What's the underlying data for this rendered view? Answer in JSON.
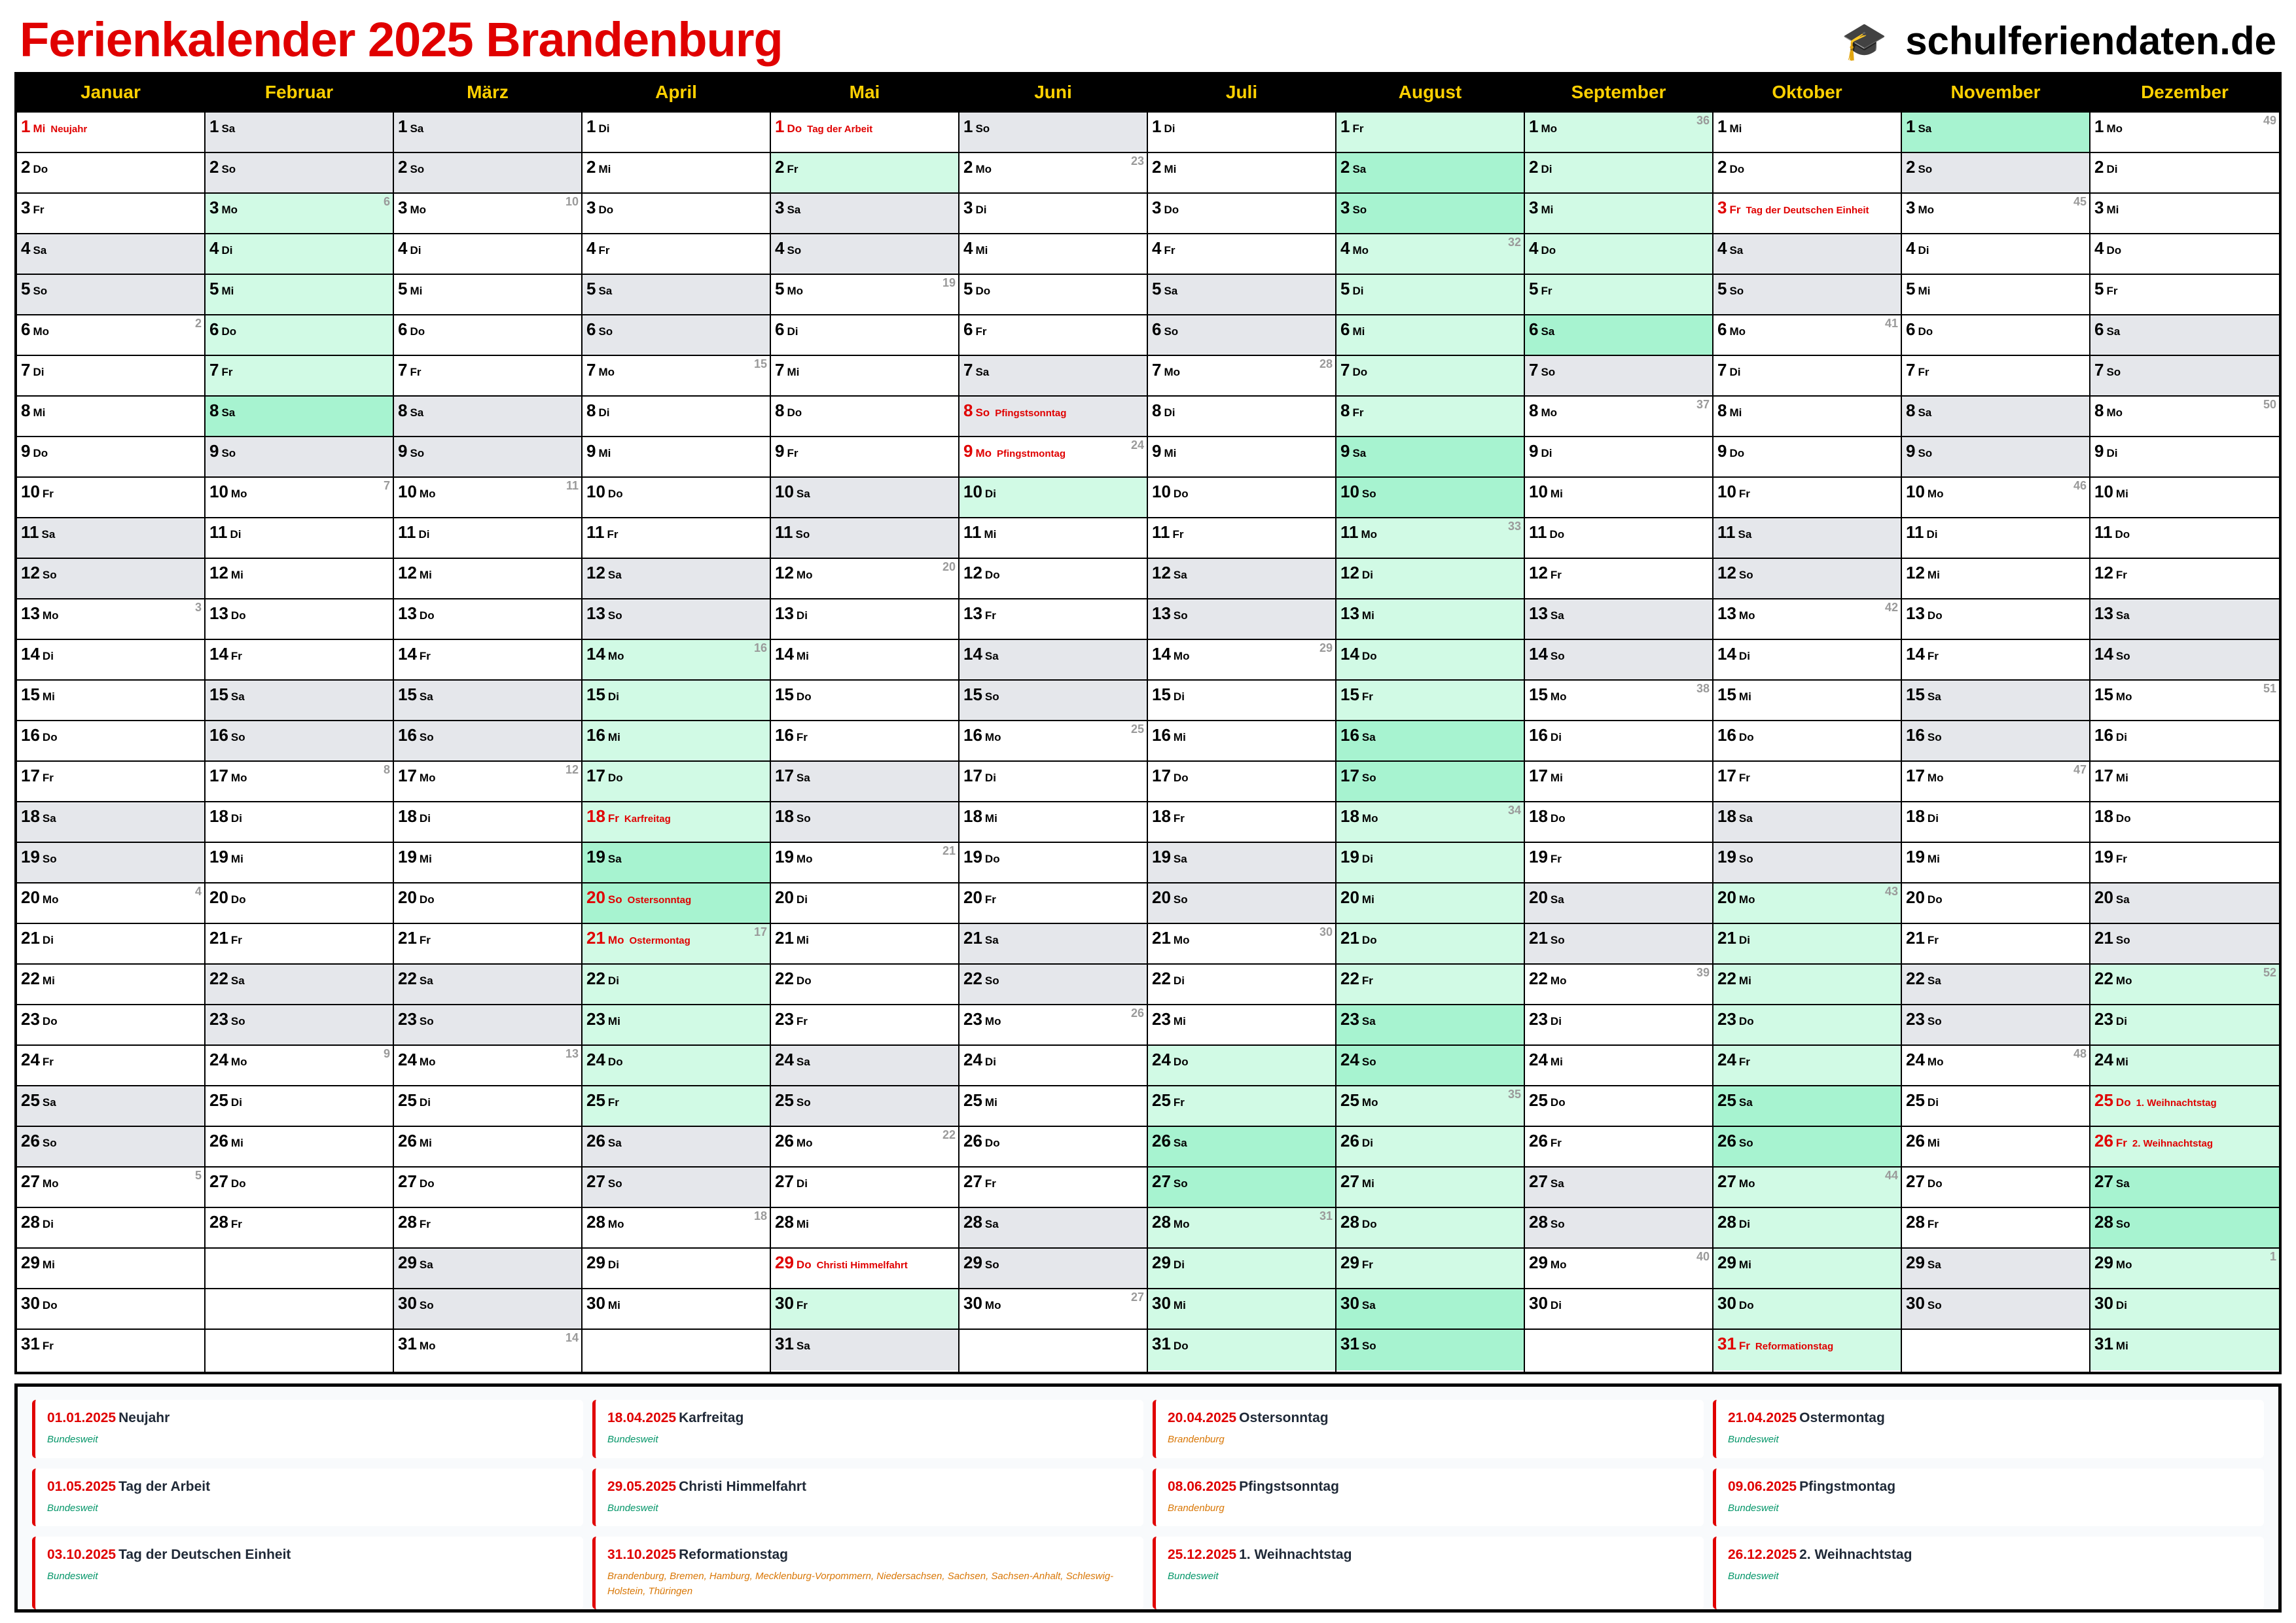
{
  "title": "Ferienkalender 2025 Brandenburg",
  "brand": {
    "name": "schulferiendaten.de",
    "icon": "graduation-cap-icon"
  },
  "colors": {
    "accent": "#e00000",
    "header_text": "#ffd000",
    "weekend": "#e5e7eb",
    "ferien": "#d1fae5",
    "ferien_weekend": "#a7f3d0",
    "bundesweit": "#059669",
    "regional": "#d97706"
  },
  "weekdays": [
    "Mo",
    "Di",
    "Mi",
    "Do",
    "Fr",
    "Sa",
    "So"
  ],
  "months": [
    {
      "name": "Januar",
      "first": 2,
      "days": 31,
      "ferien": [],
      "holidays": {
        "1": "Neujahr"
      },
      "weeks": {
        "6": 2,
        "13": 3,
        "20": 4,
        "27": 5
      }
    },
    {
      "name": "Februar",
      "first": 5,
      "days": 28,
      "ferien": [
        [
          3,
          8
        ]
      ],
      "holidays": {},
      "weeks": {
        "3": 6,
        "10": 7,
        "17": 8,
        "24": 9
      }
    },
    {
      "name": "März",
      "first": 5,
      "days": 31,
      "ferien": [],
      "holidays": {},
      "weeks": {
        "3": 10,
        "10": 11,
        "17": 12,
        "24": 13,
        "31": 14
      }
    },
    {
      "name": "April",
      "first": 1,
      "days": 30,
      "ferien": [
        [
          14,
          25
        ]
      ],
      "holidays": {
        "18": "Karfreitag",
        "20": "Ostersonntag",
        "21": "Ostermontag"
      },
      "weeks": {
        "7": 15,
        "14": 16,
        "21": 17,
        "28": 18
      }
    },
    {
      "name": "Mai",
      "first": 3,
      "days": 31,
      "ferien": [
        [
          2,
          2
        ],
        [
          30,
          30
        ]
      ],
      "holidays": {
        "1": "Tag der Arbeit",
        "29": "Christi Himmelfahrt"
      },
      "weeks": {
        "5": 19,
        "12": 20,
        "19": 21,
        "26": 22
      }
    },
    {
      "name": "Juni",
      "first": 6,
      "days": 30,
      "ferien": [
        [
          10,
          10
        ]
      ],
      "holidays": {
        "8": "Pfingstsonntag",
        "9": "Pfingstmontag"
      },
      "weeks": {
        "2": 23,
        "9": 24,
        "16": 25,
        "23": 26,
        "30": 27
      }
    },
    {
      "name": "Juli",
      "first": 1,
      "days": 31,
      "ferien": [
        [
          24,
          31
        ]
      ],
      "holidays": {},
      "weeks": {
        "7": 28,
        "14": 29,
        "21": 30,
        "28": 31
      }
    },
    {
      "name": "August",
      "first": 4,
      "days": 31,
      "ferien": [
        [
          1,
          31
        ]
      ],
      "holidays": {},
      "weeks": {
        "4": 32,
        "11": 33,
        "18": 34,
        "25": 35
      }
    },
    {
      "name": "September",
      "first": 0,
      "days": 30,
      "ferien": [
        [
          1,
          6
        ]
      ],
      "holidays": {},
      "weeks": {
        "1": 36,
        "8": 37,
        "15": 38,
        "22": 39,
        "29": 40
      }
    },
    {
      "name": "Oktober",
      "first": 2,
      "days": 31,
      "ferien": [
        [
          20,
          31
        ]
      ],
      "holidays": {
        "3": "Tag der Deutschen Einheit",
        "31": "Reformationstag"
      },
      "weeks": {
        "6": 41,
        "13": 42,
        "20": 43,
        "27": 44
      }
    },
    {
      "name": "November",
      "first": 5,
      "days": 30,
      "ferien": [
        [
          1,
          1
        ]
      ],
      "holidays": {},
      "weeks": {
        "3": 45,
        "10": 46,
        "17": 47,
        "24": 48
      }
    },
    {
      "name": "Dezember",
      "first": 0,
      "days": 31,
      "ferien": [
        [
          22,
          31
        ]
      ],
      "holidays": {
        "25": "1. Weihnachtstag",
        "26": "2. Weihnachtstag"
      },
      "weeks": {
        "1": 49,
        "8": 50,
        "15": 51,
        "22": 52,
        "29": 1
      }
    }
  ],
  "legend": [
    {
      "date": "01.01.2025",
      "name": "Neujahr",
      "region": "Bundesweit",
      "type": "bw"
    },
    {
      "date": "18.04.2025",
      "name": "Karfreitag",
      "region": "Bundesweit",
      "type": "bw"
    },
    {
      "date": "20.04.2025",
      "name": "Ostersonntag",
      "region": "Brandenburg",
      "type": "reg"
    },
    {
      "date": "21.04.2025",
      "name": "Ostermontag",
      "region": "Bundesweit",
      "type": "bw"
    },
    {
      "date": "01.05.2025",
      "name": "Tag der Arbeit",
      "region": "Bundesweit",
      "type": "bw"
    },
    {
      "date": "29.05.2025",
      "name": "Christi Himmelfahrt",
      "region": "Bundesweit",
      "type": "bw"
    },
    {
      "date": "08.06.2025",
      "name": "Pfingstsonntag",
      "region": "Brandenburg",
      "type": "reg"
    },
    {
      "date": "09.06.2025",
      "name": "Pfingstmontag",
      "region": "Bundesweit",
      "type": "bw"
    },
    {
      "date": "03.10.2025",
      "name": "Tag der Deutschen Einheit",
      "region": "Bundesweit",
      "type": "bw"
    },
    {
      "date": "31.10.2025",
      "name": "Reformationstag",
      "region": "Brandenburg, Bremen, Hamburg, Mecklenburg-Vorpommern, Niedersachsen, Sachsen, Sachsen-Anhalt, Schleswig-Holstein, Thüringen",
      "type": "reg"
    },
    {
      "date": "25.12.2025",
      "name": "1. Weihnachtstag",
      "region": "Bundesweit",
      "type": "bw"
    },
    {
      "date": "26.12.2025",
      "name": "2. Weihnachtstag",
      "region": "Bundesweit",
      "type": "bw"
    }
  ]
}
